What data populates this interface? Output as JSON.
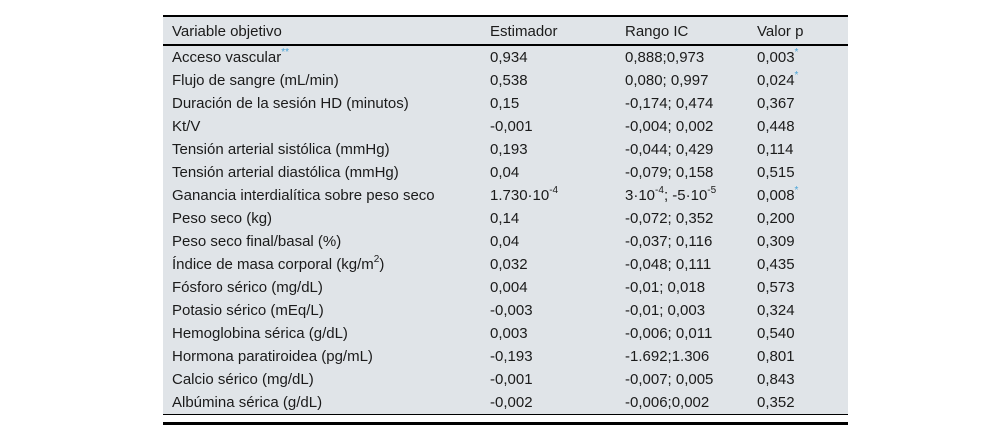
{
  "table": {
    "columns": [
      "Variable objetivo",
      "Estimador",
      "Rango IC",
      "Valor p"
    ],
    "rows": [
      {
        "variable": [
          {
            "t": "Acceso vascular"
          },
          {
            "t": "**",
            "sup": true,
            "blue": true
          }
        ],
        "estimador": [
          {
            "t": "0,934"
          }
        ],
        "rango_ic": [
          {
            "t": "0,888;0,973"
          }
        ],
        "valor_p": [
          {
            "t": "0,003"
          },
          {
            "t": "*",
            "sup": true,
            "blue": true
          }
        ]
      },
      {
        "variable": [
          {
            "t": "Flujo de sangre (mL/min)"
          }
        ],
        "estimador": [
          {
            "t": "0,538"
          }
        ],
        "rango_ic": [
          {
            "t": "0,080; 0,997"
          }
        ],
        "valor_p": [
          {
            "t": "0,024"
          },
          {
            "t": "*",
            "sup": true,
            "blue": true
          }
        ]
      },
      {
        "variable": [
          {
            "t": "Duración de la sesión HD (minutos)"
          }
        ],
        "estimador": [
          {
            "t": "0,15"
          }
        ],
        "rango_ic": [
          {
            "t": "-0,174; 0,474"
          }
        ],
        "valor_p": [
          {
            "t": "0,367"
          }
        ]
      },
      {
        "variable": [
          {
            "t": "Kt/V"
          }
        ],
        "estimador": [
          {
            "t": "-0,001"
          }
        ],
        "rango_ic": [
          {
            "t": "-0,004; 0,002"
          }
        ],
        "valor_p": [
          {
            "t": "0,448"
          }
        ]
      },
      {
        "variable": [
          {
            "t": "Tensión arterial sistólica (mmHg)"
          }
        ],
        "estimador": [
          {
            "t": "0,193"
          }
        ],
        "rango_ic": [
          {
            "t": "-0,044; 0,429"
          }
        ],
        "valor_p": [
          {
            "t": "0,114"
          }
        ]
      },
      {
        "variable": [
          {
            "t": "Tensión arterial diastólica (mmHg)"
          }
        ],
        "estimador": [
          {
            "t": "0,04"
          }
        ],
        "rango_ic": [
          {
            "t": "-0,079; 0,158"
          }
        ],
        "valor_p": [
          {
            "t": "0,515"
          }
        ]
      },
      {
        "variable": [
          {
            "t": "Ganancia interdialítica sobre peso seco"
          }
        ],
        "estimador": [
          {
            "t": "1.730·10"
          },
          {
            "t": "-4",
            "sup": true
          }
        ],
        "rango_ic": [
          {
            "t": "3·10"
          },
          {
            "t": "-4",
            "sup": true
          },
          {
            "t": "; -5·10"
          },
          {
            "t": "-5",
            "sup": true
          }
        ],
        "valor_p": [
          {
            "t": "0,008"
          },
          {
            "t": "*",
            "sup": true,
            "blue": true
          }
        ]
      },
      {
        "variable": [
          {
            "t": "Peso seco (kg)"
          }
        ],
        "estimador": [
          {
            "t": "0,14"
          }
        ],
        "rango_ic": [
          {
            "t": "-0,072; 0,352"
          }
        ],
        "valor_p": [
          {
            "t": "0,200"
          }
        ]
      },
      {
        "variable": [
          {
            "t": "Peso seco final/basal (%)"
          }
        ],
        "estimador": [
          {
            "t": "0,04"
          }
        ],
        "rango_ic": [
          {
            "t": "-0,037; 0,116"
          }
        ],
        "valor_p": [
          {
            "t": "0,309"
          }
        ]
      },
      {
        "variable": [
          {
            "t": "Índice de masa corporal (kg/m"
          },
          {
            "t": "2",
            "sup": true
          },
          {
            "t": ")"
          }
        ],
        "estimador": [
          {
            "t": "0,032"
          }
        ],
        "rango_ic": [
          {
            "t": "-0,048; 0,111"
          }
        ],
        "valor_p": [
          {
            "t": "0,435"
          }
        ]
      },
      {
        "variable": [
          {
            "t": "Fósforo sérico (mg/dL)"
          }
        ],
        "estimador": [
          {
            "t": "0,004"
          }
        ],
        "rango_ic": [
          {
            "t": "-0,01; 0,018"
          }
        ],
        "valor_p": [
          {
            "t": "0,573"
          }
        ]
      },
      {
        "variable": [
          {
            "t": "Potasio sérico (mEq/L)"
          }
        ],
        "estimador": [
          {
            "t": "-0,003"
          }
        ],
        "rango_ic": [
          {
            "t": "-0,01; 0,003"
          }
        ],
        "valor_p": [
          {
            "t": "0,324"
          }
        ]
      },
      {
        "variable": [
          {
            "t": "Hemoglobina sérica (g/dL)"
          }
        ],
        "estimador": [
          {
            "t": "0,003"
          }
        ],
        "rango_ic": [
          {
            "t": "-0,006; 0,011"
          }
        ],
        "valor_p": [
          {
            "t": "0,540"
          }
        ]
      },
      {
        "variable": [
          {
            "t": "Hormona paratiroidea (pg/mL)"
          }
        ],
        "estimador": [
          {
            "t": "-0,193"
          }
        ],
        "rango_ic": [
          {
            "t": "-1.692;1.306"
          }
        ],
        "valor_p": [
          {
            "t": "0,801"
          }
        ]
      },
      {
        "variable": [
          {
            "t": "Calcio sérico (mg/dL)"
          }
        ],
        "estimador": [
          {
            "t": "-0,001"
          }
        ],
        "rango_ic": [
          {
            "t": "-0,007; 0,005"
          }
        ],
        "valor_p": [
          {
            "t": "0,843"
          }
        ]
      },
      {
        "variable": [
          {
            "t": "Albúmina sérica (g/dL)"
          }
        ],
        "estimador": [
          {
            "t": "-0,002"
          }
        ],
        "rango_ic": [
          {
            "t": "-0,006;0,002"
          }
        ],
        "valor_p": [
          {
            "t": "0,352"
          }
        ]
      }
    ],
    "colors": {
      "table_background": "#e0e4e8",
      "text": "#1b1b1b",
      "accent_blue": "#4ba5d8",
      "rule_black": "#000000"
    }
  }
}
